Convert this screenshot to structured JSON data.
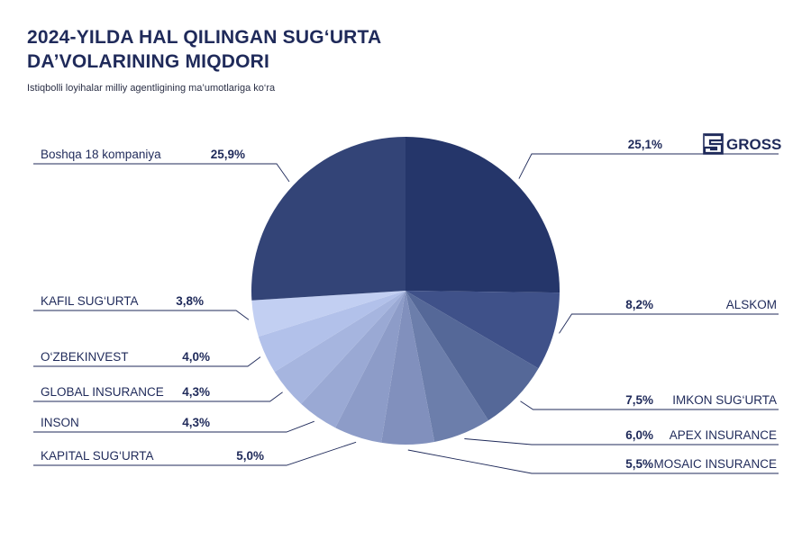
{
  "header": {
    "title_line1": "2024-YILDA HAL QILINGAN SUG‘URTA",
    "title_line2": "DA’VOLARINING MIQDORI",
    "subtitle": "Istiqbolli loyihalar milliy agentligining ma’umotlariga ko‘ra"
  },
  "chart_data": {
    "type": "pie",
    "start": "12 o'clock",
    "direction": "clockwise",
    "slices": [
      {
        "label": "GROSS",
        "value": 25.1,
        "display": "25,1%",
        "color": "#25366a",
        "logo": true
      },
      {
        "label": "ALSKOM",
        "value": 8.2,
        "display": "8,2%",
        "color": "#3f5189"
      },
      {
        "label": "IMKON SUG‘URTA",
        "value": 7.5,
        "display": "7,5%",
        "color": "#556898"
      },
      {
        "label": "APEX INSURANCE",
        "value": 6.0,
        "display": "6,0%",
        "color": "#6c7eab"
      },
      {
        "label": "MOSAIC INSURANCE",
        "value": 5.5,
        "display": "5,5%",
        "color": "#8190bd"
      },
      {
        "label": "KAPITAL SUG‘URTA",
        "value": 5.0,
        "display": "5,0%",
        "color": "#8d9cc8"
      },
      {
        "label": "INSON",
        "value": 4.3,
        "display": "4,3%",
        "color": "#9aa9d4"
      },
      {
        "label": "GLOBAL INSURANCE",
        "value": 4.3,
        "display": "4,3%",
        "color": "#a6b5df"
      },
      {
        "label": "O‘ZBEKINVEST",
        "value": 4.0,
        "display": "4,0%",
        "color": "#b2c1ea"
      },
      {
        "label": "KAFIL SUG‘URTA",
        "value": 3.8,
        "display": "3,8%",
        "color": "#c2cff2"
      },
      {
        "label": "Boshqa 18 kompaniya",
        "value": 25.9,
        "display": "25,9%",
        "color": "#334477"
      }
    ]
  },
  "colors": {
    "text": "#1f2a5a",
    "leader": "#1f2a5a",
    "background": "#ffffff"
  }
}
